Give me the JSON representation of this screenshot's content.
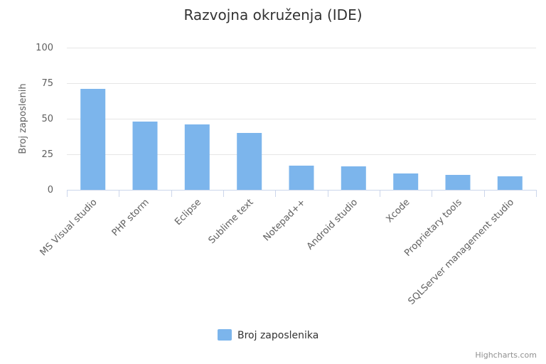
{
  "chart_data": {
    "type": "bar",
    "title": "Razvojna okruženja (IDE)",
    "xlabel": "",
    "ylabel": "Broj zaposlenih",
    "ylim": [
      0,
      100
    ],
    "yticks": [
      0,
      25,
      50,
      75,
      100
    ],
    "grid": true,
    "legend_position": "bottom-center",
    "categories": [
      "MS Visual studio",
      "PHP storm",
      "Eclipse",
      "Sublime text",
      "Notepad++",
      "Android studio",
      "Xcode",
      "Proprietary tools",
      "SQLServer management studio"
    ],
    "series": [
      {
        "name": "Broj zaposlenika",
        "color": "#7cb5ec",
        "values": [
          71,
          48,
          46,
          40,
          17,
          16.5,
          11.5,
          10.5,
          9.5
        ]
      }
    ]
  },
  "credits": "Highcharts.com"
}
